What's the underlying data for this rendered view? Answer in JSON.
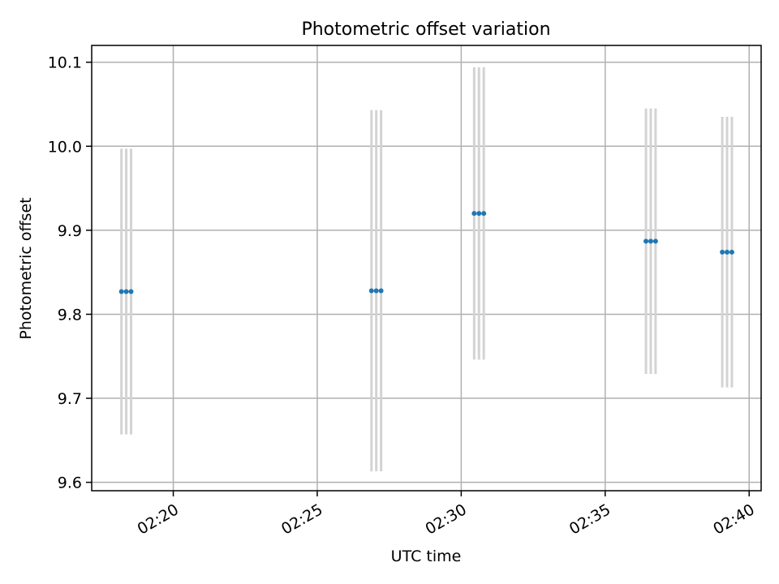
{
  "chart_data": {
    "type": "scatter",
    "title": "Photometric offset variation",
    "xlabel": "UTC time",
    "ylabel": "Photometric offset",
    "x_tick_labels": [
      "02:20",
      "02:25",
      "02:30",
      "02:35",
      "02:40"
    ],
    "y_tick_labels": [
      "9.6",
      "9.7",
      "9.8",
      "9.9",
      "10.0",
      "10.1"
    ],
    "y_ticks": [
      9.6,
      9.7,
      9.8,
      9.9,
      10.0,
      10.1
    ],
    "xlim": [
      "02:17:10",
      "02:40:25"
    ],
    "ylim": [
      9.59,
      10.12
    ],
    "grid": true,
    "series": [
      {
        "marker_color": "#1f77b4",
        "errorbar_color": "#d3d3d3",
        "points": [
          {
            "x": "02:18:12",
            "y": 9.827,
            "yerr": 0.17
          },
          {
            "x": "02:18:22",
            "y": 9.827,
            "yerr": 0.17
          },
          {
            "x": "02:18:32",
            "y": 9.827,
            "yerr": 0.17
          },
          {
            "x": "02:26:53",
            "y": 9.828,
            "yerr": 0.215
          },
          {
            "x": "02:27:03",
            "y": 9.828,
            "yerr": 0.215
          },
          {
            "x": "02:27:13",
            "y": 9.828,
            "yerr": 0.215
          },
          {
            "x": "02:30:27",
            "y": 9.92,
            "yerr": 0.174
          },
          {
            "x": "02:30:37",
            "y": 9.92,
            "yerr": 0.174
          },
          {
            "x": "02:30:47",
            "y": 9.92,
            "yerr": 0.174
          },
          {
            "x": "02:36:25",
            "y": 9.887,
            "yerr": 0.158
          },
          {
            "x": "02:36:35",
            "y": 9.887,
            "yerr": 0.158
          },
          {
            "x": "02:36:45",
            "y": 9.887,
            "yerr": 0.158
          },
          {
            "x": "02:39:04",
            "y": 9.874,
            "yerr": 0.161
          },
          {
            "x": "02:39:14",
            "y": 9.874,
            "yerr": 0.161
          },
          {
            "x": "02:39:24",
            "y": 9.874,
            "yerr": 0.161
          }
        ]
      }
    ]
  }
}
